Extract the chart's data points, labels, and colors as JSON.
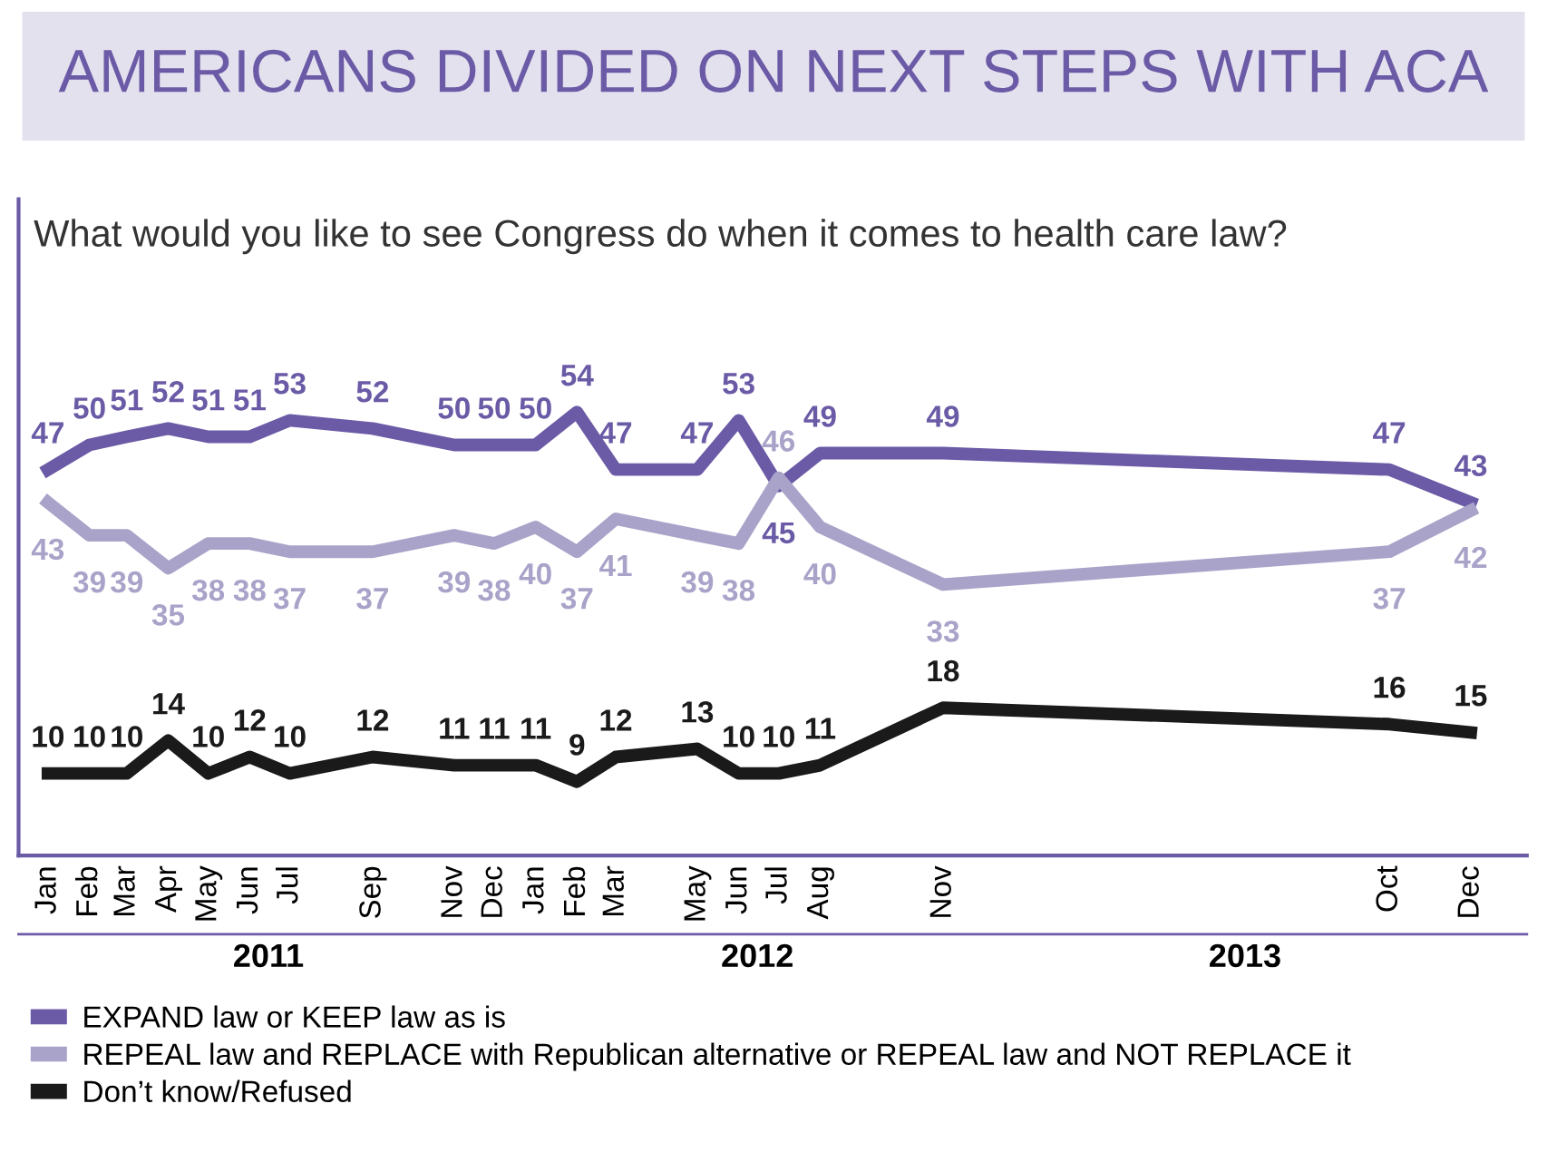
{
  "chart_data": {
    "type": "line",
    "title": "AMERICANS DIVIDED ON NEXT STEPS WITH ACA",
    "subtitle": "What would you like to see Congress do when it comes to health care law?",
    "x": [
      "2011-01",
      "2011-02",
      "2011-03",
      "2011-04",
      "2011-05",
      "2011-06",
      "2011-07",
      "2011-09",
      "2011-11",
      "2011-12",
      "2012-01",
      "2012-02",
      "2012-03",
      "2012-05",
      "2012-06",
      "2012-07",
      "2012-08",
      "2012-11",
      "2013-10",
      "2013-12"
    ],
    "series": [
      {
        "name": "EXPAND law or KEEP law as is",
        "color": "#6b5aa6",
        "values": [
          47,
          50,
          51,
          52,
          51,
          51,
          53,
          52,
          50,
          50,
          50,
          54,
          47,
          47,
          53,
          45,
          49,
          49,
          47,
          43
        ]
      },
      {
        "name": "REPEAL law and REPLACE with Republican alternative or REPEAL law and NOT REPLACE it",
        "color": "#aaa3c9",
        "values": [
          43,
          39,
          39,
          35,
          38,
          38,
          37,
          37,
          39,
          38,
          40,
          37,
          41,
          39,
          38,
          46,
          40,
          33,
          37,
          42
        ]
      },
      {
        "name": "Don’t know/Refused",
        "color": "#1a1a1a",
        "values": [
          10,
          10,
          10,
          14,
          10,
          12,
          10,
          12,
          11,
          11,
          11,
          9,
          12,
          13,
          10,
          10,
          11,
          18,
          16,
          15
        ]
      }
    ],
    "xlim": [
      "2010-12-10",
      "2014-01-12"
    ],
    "xticks": [
      {
        "value": "2011-01",
        "label": "Jan"
      },
      {
        "value": "2011-02",
        "label": "Feb"
      },
      {
        "value": "2011-03",
        "label": "Mar"
      },
      {
        "value": "2011-04",
        "label": "Apr"
      },
      {
        "value": "2011-05",
        "label": "May"
      },
      {
        "value": "2011-06",
        "label": "Jun"
      },
      {
        "value": "2011-07",
        "label": "Jul"
      },
      {
        "value": "2011-09",
        "label": "Sep"
      },
      {
        "value": "2011-11",
        "label": "Nov"
      },
      {
        "value": "2011-12",
        "label": "Dec"
      },
      {
        "value": "2012-01",
        "label": "Jan"
      },
      {
        "value": "2012-02",
        "label": "Feb"
      },
      {
        "value": "2012-03",
        "label": "Mar"
      },
      {
        "value": "2012-05",
        "label": "May"
      },
      {
        "value": "2012-06",
        "label": "Jun"
      },
      {
        "value": "2012-07",
        "label": "Jul"
      },
      {
        "value": "2012-08",
        "label": "Aug"
      },
      {
        "value": "2012-11",
        "label": "Nov"
      },
      {
        "value": "2013-10",
        "label": "Oct"
      },
      {
        "value": "2013-12",
        "label": "Dec"
      }
    ],
    "x2lim": [
      "2010-12-10",
      "2014-01-12"
    ],
    "x2ticks": [
      {
        "value": "2011-06-15",
        "label": "2011"
      },
      {
        "value": "2012-06-15",
        "label": "2012"
      },
      {
        "value": "2013-06-15",
        "label": "2013"
      }
    ],
    "data_labels": true,
    "tick_labels": "x",
    "legend": "bottom",
    "grid": false,
    "marker": "none",
    "line_style": "solid"
  }
}
